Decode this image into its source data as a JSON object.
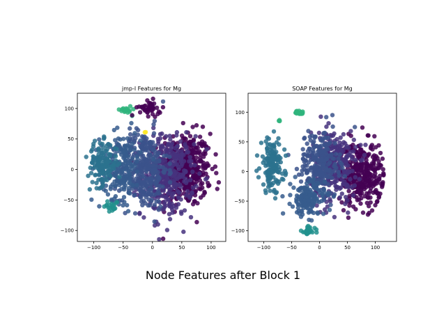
{
  "figure": {
    "suptitle": "Node Features after Block 1"
  },
  "colors": {
    "dark_purple": "#440154",
    "purple": "#46337e",
    "indigo": "#3b528b",
    "blue": "#365c8d",
    "teal_blue": "#2c728e",
    "teal": "#21908d",
    "green": "#2fb47c",
    "yellow": "#fde725"
  },
  "chart_data": [
    {
      "type": "scatter",
      "title": "jmp-l Features for Mg",
      "xlabel": "",
      "ylabel": "",
      "xlim": [
        -128,
        125
      ],
      "ylim": [
        -118,
        125
      ],
      "xticks": [
        "−100",
        "−50",
        "0",
        "50",
        "100"
      ],
      "yticks": [
        "100",
        "50",
        "0",
        "−50",
        "−100"
      ],
      "grid": false,
      "legend": "none",
      "clusters": [
        {
          "color": "dark_purple",
          "center": [
            55,
            0
          ],
          "spread": [
            45,
            60
          ],
          "count": 420
        },
        {
          "color": "purple",
          "center": [
            25,
            -10
          ],
          "spread": [
            45,
            65
          ],
          "count": 360
        },
        {
          "color": "indigo",
          "center": [
            -15,
            0
          ],
          "spread": [
            40,
            65
          ],
          "count": 320
        },
        {
          "color": "blue",
          "center": [
            -55,
            5
          ],
          "spread": [
            35,
            55
          ],
          "count": 200
        },
        {
          "color": "teal_blue",
          "center": [
            -85,
            10
          ],
          "spread": [
            25,
            35
          ],
          "count": 140
        },
        {
          "color": "teal",
          "center": [
            -70,
            -60
          ],
          "spread": [
            12,
            10
          ],
          "count": 20
        },
        {
          "color": "green",
          "center": [
            -45,
            98
          ],
          "spread": [
            10,
            7
          ],
          "count": 18
        },
        {
          "color": "dark_purple",
          "center": [
            -5,
            100
          ],
          "spread": [
            20,
            12
          ],
          "count": 40
        },
        {
          "color": "yellow",
          "center": [
            -12,
            62
          ],
          "spread": [
            2,
            2
          ],
          "count": 2
        }
      ]
    },
    {
      "type": "scatter",
      "title": "SOAP Features for Mg",
      "xlabel": "",
      "ylabel": "",
      "xlim": [
        -128,
        138
      ],
      "ylim": [
        -118,
        132
      ],
      "xticks": [
        "−100",
        "−50",
        "0",
        "50",
        "100"
      ],
      "yticks": [
        "100",
        "50",
        "0",
        "−50",
        "−100"
      ],
      "grid": false,
      "legend": "none",
      "clusters": [
        {
          "color": "dark_purple",
          "center": [
            75,
            -5
          ],
          "spread": [
            40,
            55
          ],
          "count": 340
        },
        {
          "color": "purple",
          "center": [
            25,
            10
          ],
          "spread": [
            40,
            60
          ],
          "count": 300
        },
        {
          "color": "indigo",
          "center": [
            0,
            15
          ],
          "spread": [
            35,
            55
          ],
          "count": 220
        },
        {
          "color": "blue",
          "center": [
            -20,
            -45
          ],
          "spread": [
            30,
            30
          ],
          "count": 160
        },
        {
          "color": "teal_blue",
          "center": [
            -85,
            10
          ],
          "spread": [
            22,
            45
          ],
          "count": 150
        },
        {
          "color": "teal",
          "center": [
            -20,
            -100
          ],
          "spread": [
            12,
            8
          ],
          "count": 22
        },
        {
          "color": "green",
          "center": [
            -35,
            100
          ],
          "spread": [
            12,
            5
          ],
          "count": 18
        },
        {
          "color": "green",
          "center": [
            -72,
            85
          ],
          "spread": [
            2,
            2
          ],
          "count": 3
        }
      ]
    }
  ]
}
